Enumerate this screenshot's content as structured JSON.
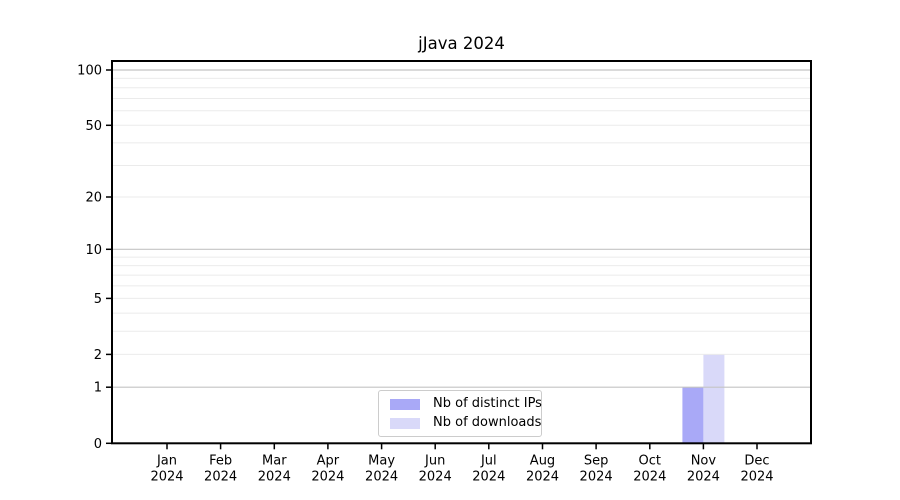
{
  "chart_data": {
    "type": "bar",
    "title": "jJava 2024",
    "categories": [
      "Jan",
      "Feb",
      "Mar",
      "Apr",
      "May",
      "Jun",
      "Jul",
      "Aug",
      "Sep",
      "Oct",
      "Nov",
      "Dec"
    ],
    "x_tick_year": "2024",
    "series": [
      {
        "name": "Nb of distinct IPs",
        "slug": "distinct-ips",
        "color": "#a9a9f7",
        "values": [
          0,
          0,
          0,
          0,
          0,
          0,
          0,
          0,
          0,
          0,
          1,
          0
        ]
      },
      {
        "name": "Nb of downloads",
        "slug": "downloads",
        "color": "#d9d9f9",
        "values": [
          0,
          0,
          0,
          0,
          0,
          0,
          0,
          0,
          0,
          0,
          2,
          0
        ]
      }
    ],
    "xlabel": "",
    "ylabel": "",
    "yscale": "log1p",
    "ylim": [
      0,
      112
    ],
    "yticks": [
      0,
      1,
      2,
      5,
      10,
      20,
      50,
      100
    ],
    "minor_yticks": [
      3,
      4,
      6,
      7,
      8,
      9,
      30,
      40,
      60,
      70,
      80,
      90
    ],
    "emphasized_gridlines": [
      1,
      10,
      100
    ],
    "grid": "horizontal",
    "legend": {
      "position": "lower center"
    },
    "colors": {
      "major_grid": "#c4c4c4",
      "minor_grid": "#ebebeb",
      "axis": "#000000",
      "text": "#000000",
      "background": "#ffffff"
    }
  }
}
